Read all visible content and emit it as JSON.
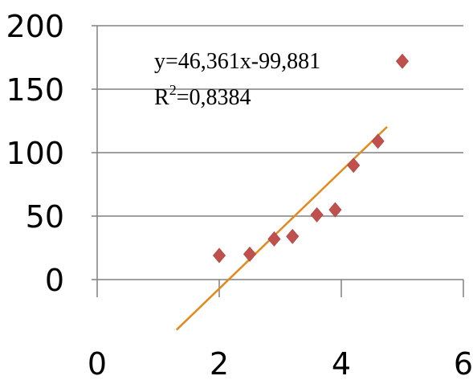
{
  "chart_data": {
    "type": "scatter",
    "xlim": [
      0,
      6
    ],
    "ylim": [
      0,
      200
    ],
    "x_ticks": [
      "0",
      "2",
      "4",
      "6"
    ],
    "y_ticks": [
      "0",
      "50",
      "100",
      "150",
      "200"
    ],
    "grid": "horizontal",
    "points": [
      {
        "x": 2.0,
        "y": 19
      },
      {
        "x": 2.5,
        "y": 20
      },
      {
        "x": 2.9,
        "y": 32
      },
      {
        "x": 3.2,
        "y": 34
      },
      {
        "x": 3.6,
        "y": 51
      },
      {
        "x": 3.9,
        "y": 55
      },
      {
        "x": 4.2,
        "y": 90
      },
      {
        "x": 4.6,
        "y": 109
      },
      {
        "x": 5.0,
        "y": 172
      }
    ],
    "trendline": {
      "slope": 46.361,
      "intercept": -99.881,
      "x_range": [
        1.3,
        4.75
      ],
      "equation": "y=46,361x-99,881",
      "r2_prefix": "R",
      "r2_exp": "2",
      "r2_value": "=0,8384"
    },
    "colors": {
      "marker": "#c0504d",
      "trendline": "#e08a1e",
      "grid": "#808080",
      "axis": "#808080"
    }
  }
}
